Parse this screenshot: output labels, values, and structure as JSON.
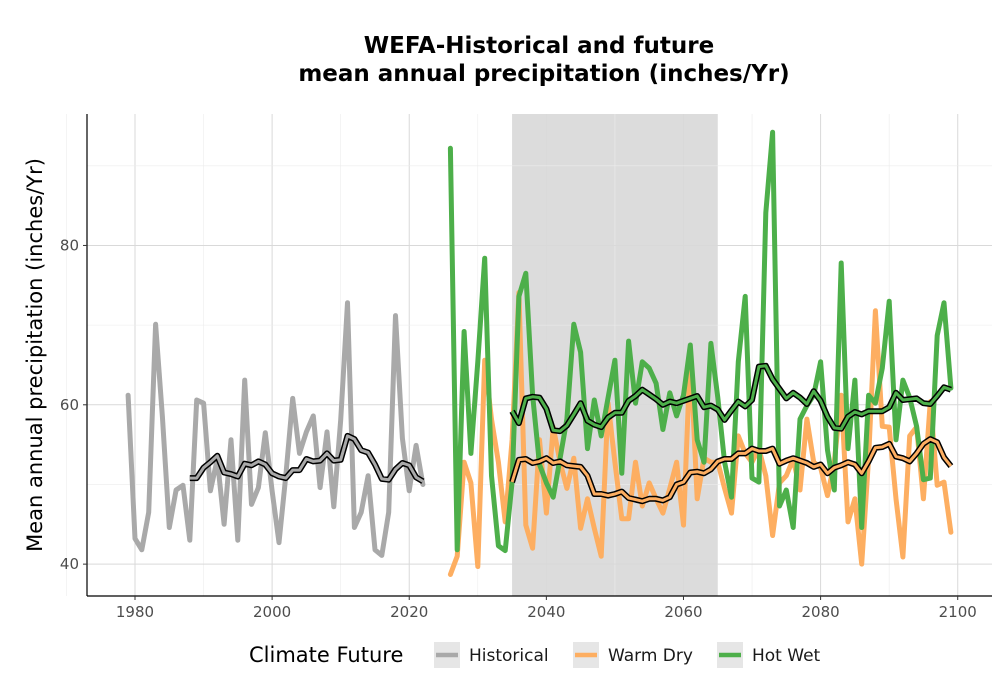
{
  "chart_data": {
    "type": "line",
    "title": "WEFA-Historical and future",
    "subtitle": "mean annual precipitation (inches/Yr)",
    "xlabel": "",
    "ylabel": "Mean annual precipitation (inches/Yr)",
    "xlim": [
      1973,
      2105
    ],
    "ylim": [
      36,
      96.5
    ],
    "x_ticks": [
      "1980",
      "2000",
      "2020",
      "2040",
      "2060",
      "2080",
      "2100"
    ],
    "y_ticks": [
      "40",
      "60",
      "80"
    ],
    "grid": true,
    "shaded_period": [
      2035,
      2065
    ],
    "legend": {
      "title": "Climate Future",
      "placement": "bottom",
      "items": [
        "Historical",
        "Warm Dry",
        "Hot Wet"
      ]
    },
    "colors": {
      "Historical": "#a9a9a9",
      "Warm Dry": "#fdae61",
      "Hot Wet": "#4daf4a",
      "smooth": "#000000",
      "shade": "#dcdcdc"
    },
    "series": [
      {
        "name": "Historical",
        "x": [
          1979,
          1980,
          1981,
          1982,
          1983,
          1984,
          1985,
          1986,
          1987,
          1988,
          1989,
          1990,
          1991,
          1992,
          1993,
          1994,
          1995,
          1996,
          1997,
          1998,
          1999,
          2000,
          2001,
          2002,
          2003,
          2004,
          2005,
          2006,
          2007,
          2008,
          2009,
          2010,
          2011,
          2012,
          2013,
          2014,
          2015,
          2016,
          2017,
          2018,
          2019,
          2020,
          2021,
          2022
        ],
        "values": [
          61.2,
          43.2,
          41.8,
          46.5,
          70.1,
          58.5,
          44.6,
          49.3,
          49.9,
          43.0,
          60.6,
          60.2,
          49.2,
          53.2,
          45.0,
          55.6,
          43.0,
          63.1,
          47.5,
          49.6,
          56.5,
          49.2,
          42.7,
          51.1,
          60.8,
          53.9,
          56.6,
          58.6,
          49.6,
          56.6,
          47.2,
          58.1,
          72.8,
          44.6,
          46.5,
          51.1,
          41.8,
          41.1,
          46.5,
          71.2,
          55.8,
          49.2,
          54.9,
          50.0
        ]
      },
      {
        "name": "Historical smooth",
        "x": [
          1988,
          1989,
          1990,
          1991,
          1992,
          1993,
          1994,
          1995,
          1996,
          1997,
          1998,
          1999,
          2000,
          2001,
          2002,
          2003,
          2004,
          2005,
          2006,
          2007,
          2008,
          2009,
          2010,
          2011,
          2012,
          2013,
          2014,
          2015,
          2016,
          2017,
          2018,
          2019,
          2020,
          2021,
          2022
        ],
        "values": [
          50.8,
          50.8,
          52.1,
          52.8,
          53.6,
          51.5,
          51.3,
          51.0,
          52.6,
          52.4,
          52.9,
          52.5,
          51.4,
          51.0,
          50.8,
          51.8,
          51.8,
          53.2,
          52.9,
          53.0,
          53.9,
          53.0,
          53.1,
          56.1,
          55.7,
          54.3,
          54.0,
          52.5,
          50.7,
          50.6,
          51.9,
          52.7,
          52.4,
          50.9,
          50.4
        ]
      },
      {
        "name": "Warm Dry",
        "x": [
          2026,
          2027,
          2028,
          2029,
          2030,
          2031,
          2032,
          2033,
          2034,
          2035,
          2036,
          2037,
          2038,
          2039,
          2040,
          2041,
          2042,
          2043,
          2044,
          2045,
          2046,
          2047,
          2048,
          2049,
          2050,
          2051,
          2052,
          2053,
          2054,
          2055,
          2056,
          2057,
          2058,
          2059,
          2060,
          2061,
          2062,
          2063,
          2064,
          2065,
          2066,
          2067,
          2068,
          2069,
          2070,
          2071,
          2072,
          2073,
          2074,
          2075,
          2076,
          2077,
          2078,
          2079,
          2080,
          2081,
          2082,
          2083,
          2084,
          2085,
          2086,
          2087,
          2088,
          2089,
          2090,
          2091,
          2092,
          2093,
          2094,
          2095,
          2096,
          2097,
          2098,
          2099
        ],
        "values": [
          38.7,
          41.0,
          52.8,
          50.2,
          39.7,
          65.6,
          58.2,
          52.8,
          45.3,
          55.6,
          74.1,
          44.9,
          42.0,
          55.6,
          46.4,
          57.2,
          52.8,
          49.5,
          53.3,
          44.5,
          48.2,
          44.5,
          41.0,
          60.2,
          52.8,
          45.7,
          45.7,
          52.8,
          47.3,
          50.2,
          48.2,
          46.4,
          49.5,
          52.8,
          44.9,
          66.6,
          48.2,
          53.3,
          52.8,
          52.8,
          49.5,
          46.4,
          56.1,
          53.9,
          52.8,
          54.5,
          51.1,
          43.6,
          50.2,
          51.1,
          53.2,
          49.3,
          58.2,
          52.8,
          52.1,
          48.6,
          52.8,
          61.2,
          45.3,
          48.2,
          40.0,
          53.3,
          71.8,
          57.3,
          57.2,
          48.2,
          40.9,
          56.1,
          57.2,
          48.2,
          60.4,
          49.9,
          50.3,
          44.0
        ]
      },
      {
        "name": "Warm Dry smooth",
        "x": [
          2035,
          2036,
          2037,
          2038,
          2039,
          2040,
          2041,
          2042,
          2043,
          2044,
          2045,
          2046,
          2047,
          2048,
          2049,
          2050,
          2051,
          2052,
          2053,
          2054,
          2055,
          2056,
          2057,
          2058,
          2059,
          2060,
          2061,
          2062,
          2063,
          2064,
          2065,
          2066,
          2067,
          2068,
          2069,
          2070,
          2071,
          2072,
          2073,
          2074,
          2075,
          2076,
          2077,
          2078,
          2079,
          2080,
          2081,
          2082,
          2083,
          2084,
          2085,
          2086,
          2087,
          2088,
          2089,
          2090,
          2091,
          2092,
          2093,
          2094,
          2095,
          2096,
          2097,
          2098,
          2099
        ],
        "values": [
          50.3,
          53.1,
          53.2,
          52.7,
          52.9,
          53.3,
          52.7,
          52.9,
          52.4,
          52.3,
          52.2,
          51.1,
          48.8,
          48.8,
          48.6,
          48.8,
          49.1,
          48.3,
          48.1,
          47.9,
          48.2,
          48.2,
          48.0,
          48.4,
          50.0,
          50.3,
          51.5,
          51.6,
          51.4,
          51.9,
          52.9,
          53.2,
          53.2,
          53.9,
          53.9,
          54.5,
          54.2,
          54.2,
          54.5,
          52.6,
          53.0,
          53.3,
          53.0,
          52.7,
          52.2,
          52.5,
          51.4,
          52.1,
          52.4,
          52.8,
          52.5,
          51.4,
          52.9,
          54.6,
          54.7,
          55.1,
          53.5,
          53.3,
          52.9,
          53.9,
          55.1,
          55.7,
          55.3,
          53.4,
          52.3
        ]
      },
      {
        "name": "Hot Wet",
        "x": [
          2026,
          2027,
          2028,
          2029,
          2030,
          2031,
          2032,
          2033,
          2034,
          2035,
          2036,
          2037,
          2038,
          2039,
          2040,
          2041,
          2042,
          2043,
          2044,
          2045,
          2046,
          2047,
          2048,
          2049,
          2050,
          2051,
          2052,
          2053,
          2054,
          2055,
          2056,
          2057,
          2058,
          2059,
          2060,
          2061,
          2062,
          2063,
          2064,
          2065,
          2066,
          2067,
          2068,
          2069,
          2070,
          2071,
          2072,
          2073,
          2074,
          2075,
          2076,
          2077,
          2078,
          2079,
          2080,
          2081,
          2082,
          2083,
          2084,
          2085,
          2086,
          2087,
          2088,
          2089,
          2090,
          2091,
          2092,
          2093,
          2094,
          2095,
          2096,
          2097,
          2098,
          2099
        ],
        "values": [
          92.2,
          41.8,
          69.2,
          53.9,
          65.4,
          78.4,
          51.1,
          42.3,
          41.7,
          50.3,
          73.6,
          76.5,
          61.2,
          52.5,
          50.2,
          48.4,
          53.3,
          58.2,
          70.1,
          66.6,
          54.5,
          60.6,
          56.1,
          60.9,
          65.6,
          51.4,
          68.0,
          60.2,
          65.4,
          64.6,
          62.7,
          56.9,
          61.5,
          58.6,
          61.2,
          67.5,
          55.6,
          52.8,
          67.7,
          60.9,
          52.8,
          48.4,
          65.4,
          73.6,
          50.8,
          50.3,
          84.1,
          94.2,
          47.3,
          49.3,
          44.6,
          58.2,
          59.9,
          61.2,
          65.4,
          54.3,
          49.3,
          77.8,
          54.5,
          63.1,
          44.6,
          61.2,
          60.2,
          64.6,
          73.0,
          55.6,
          63.1,
          60.9,
          57.3,
          50.6,
          50.8,
          68.7,
          72.8,
          62.1
        ]
      },
      {
        "name": "Hot Wet smooth",
        "x": [
          2035,
          2036,
          2037,
          2038,
          2039,
          2040,
          2041,
          2042,
          2043,
          2044,
          2045,
          2046,
          2047,
          2048,
          2049,
          2050,
          2051,
          2052,
          2053,
          2054,
          2055,
          2056,
          2057,
          2058,
          2059,
          2060,
          2061,
          2062,
          2063,
          2064,
          2065,
          2066,
          2067,
          2068,
          2069,
          2070,
          2071,
          2072,
          2073,
          2074,
          2075,
          2076,
          2077,
          2078,
          2079,
          2080,
          2081,
          2082,
          2083,
          2084,
          2085,
          2086,
          2087,
          2088,
          2089,
          2090,
          2091,
          2092,
          2093,
          2094,
          2095,
          2096,
          2097,
          2098,
          2099
        ],
        "values": [
          59.2,
          57.7,
          60.8,
          61.0,
          60.9,
          59.5,
          56.8,
          56.7,
          57.4,
          58.8,
          60.2,
          58.0,
          57.5,
          57.2,
          58.4,
          59.0,
          59.0,
          60.5,
          61.1,
          61.9,
          61.3,
          60.7,
          60.0,
          60.4,
          60.2,
          60.5,
          60.8,
          61.1,
          59.7,
          59.9,
          59.4,
          58.1,
          59.3,
          60.4,
          59.8,
          60.6,
          64.8,
          64.9,
          63.2,
          62.0,
          60.8,
          61.5,
          60.9,
          60.1,
          61.7,
          60.5,
          58.5,
          57.1,
          57.0,
          58.5,
          59.1,
          58.8,
          59.2,
          59.2,
          59.2,
          59.7,
          61.5,
          60.6,
          60.7,
          60.8,
          60.2,
          60.1,
          61.1,
          62.2,
          61.9
        ]
      }
    ]
  }
}
